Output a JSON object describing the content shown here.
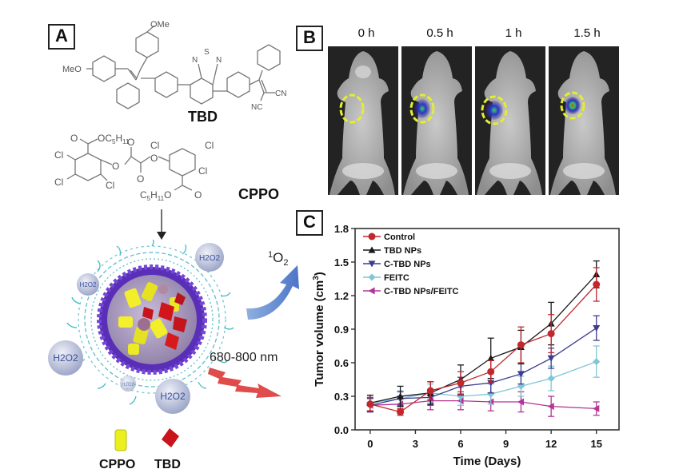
{
  "panel_a": {
    "label": "A",
    "tbd_structure": {
      "name": "TBD",
      "groups": [
        "OMe",
        "MeO",
        "N",
        "S",
        "N",
        "CN",
        "NC"
      ]
    },
    "cppo_structure": {
      "name": "CPPO",
      "groups": [
        "O",
        "OC5H11",
        "Cl",
        "Cl",
        "Cl",
        "Cl",
        "O",
        "O",
        "O",
        "O",
        "Cl",
        "Cl",
        "Cl",
        "Cl",
        "C5H11O",
        "O"
      ],
      "sub_top": "OC",
      "sub_top_5": "5",
      "sub_top_h": "H",
      "sub_top_11": "11",
      "sub_bot_c": "C",
      "sub_bot_5": "5",
      "sub_bot_h": "H",
      "sub_bot_11": "11",
      "sub_bot_o": "O"
    },
    "nanoparticle": {
      "h2o2_labels": [
        "H2O2",
        "H2O2",
        "H2O2",
        "H2O2",
        "H2O2"
      ],
      "singlet_oxygen_sup": "1",
      "singlet_oxygen": "O",
      "singlet_oxygen_sub": "2",
      "emission_label": "680-800 nm"
    },
    "legend": {
      "cppo": "CPPO",
      "tbd": "TBD"
    }
  },
  "panel_b": {
    "label": "B",
    "timepoints": [
      "0 h",
      "0.5 h",
      "1 h",
      "1.5 h"
    ]
  },
  "panel_c": {
    "label": "C"
  },
  "chart_data": {
    "type": "line",
    "title": "",
    "xlabel": "Time (Days)",
    "ylabel": "Tumor volume (cm",
    "ylabel_sup": "3",
    "ylabel_end": ")",
    "xlim": [
      -1,
      16.5
    ],
    "ylim": [
      0.0,
      1.8
    ],
    "xticks": [
      0,
      3,
      6,
      9,
      12,
      15
    ],
    "xtick_labels": [
      "0",
      "3",
      "6",
      "9",
      "12",
      "15"
    ],
    "yticks": [
      0.0,
      0.3,
      0.6,
      0.9,
      1.2,
      1.5,
      1.8
    ],
    "ytick_labels": [
      "0.0",
      "0.3",
      "0.6",
      "0.9",
      "1.2",
      "1.5",
      "1.8"
    ],
    "legend_position": "top-left",
    "x": [
      0,
      2,
      4,
      6,
      8,
      10,
      12,
      15
    ],
    "series": [
      {
        "name": "Control",
        "color": "#c0282d",
        "marker": "circle",
        "values": [
          0.23,
          0.16,
          0.35,
          0.42,
          0.52,
          0.76,
          0.86,
          1.3
        ],
        "errors": [
          0.06,
          0.03,
          0.08,
          0.1,
          0.1,
          0.16,
          0.17,
          0.15
        ]
      },
      {
        "name": "TBD NPs",
        "color": "#1a1a1a",
        "marker": "triangle-up",
        "values": [
          0.24,
          0.3,
          0.33,
          0.45,
          0.64,
          0.74,
          0.95,
          1.39
        ],
        "errors": [
          0.07,
          0.09,
          0.1,
          0.13,
          0.18,
          0.15,
          0.19,
          0.12
        ]
      },
      {
        "name": "C-TBD NPs",
        "color": "#3d3c8f",
        "marker": "triangle-down",
        "values": [
          0.22,
          0.28,
          0.29,
          0.39,
          0.42,
          0.5,
          0.64,
          0.91
        ],
        "errors": [
          0.06,
          0.06,
          0.07,
          0.08,
          0.09,
          0.09,
          0.09,
          0.11
        ]
      },
      {
        "name": "FEITC",
        "color": "#7fc6d6",
        "marker": "diamond",
        "values": [
          0.24,
          0.28,
          0.33,
          0.3,
          0.32,
          0.39,
          0.46,
          0.61
        ],
        "errors": [
          0.07,
          0.07,
          0.08,
          0.08,
          0.09,
          0.09,
          0.11,
          0.14
        ]
      },
      {
        "name": "C-TBD NPs/FEITC",
        "color": "#b33597",
        "marker": "triangle-left",
        "values": [
          0.22,
          0.23,
          0.26,
          0.26,
          0.25,
          0.25,
          0.21,
          0.19
        ],
        "errors": [
          0.06,
          0.05,
          0.08,
          0.08,
          0.08,
          0.09,
          0.09,
          0.06
        ]
      }
    ]
  }
}
